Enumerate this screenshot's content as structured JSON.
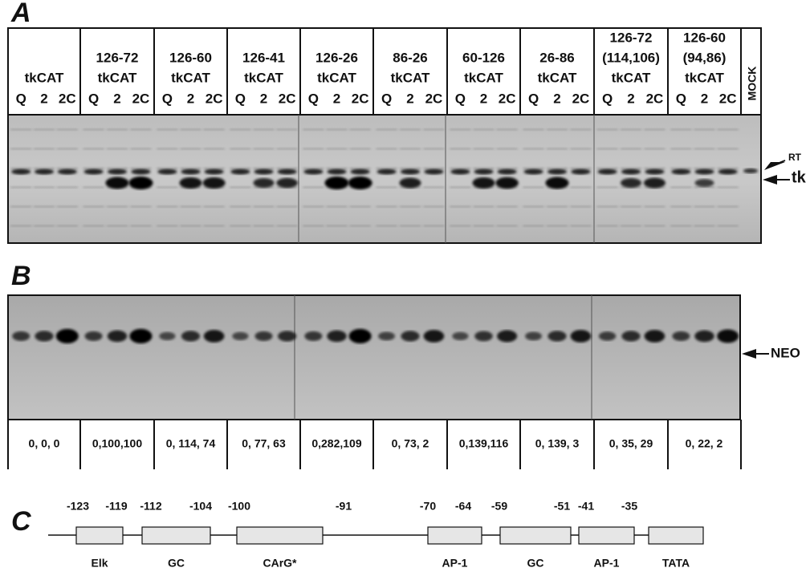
{
  "panels": {
    "a": "A",
    "b": "B",
    "c": "C"
  },
  "groups": [
    {
      "lines": [
        "tkCAT"
      ],
      "lanes": [
        "Q",
        "2",
        "2C"
      ]
    },
    {
      "lines": [
        "126-72",
        "tkCAT"
      ],
      "lanes": [
        "Q",
        "2",
        "2C"
      ]
    },
    {
      "lines": [
        "126-60",
        "tkCAT"
      ],
      "lanes": [
        "Q",
        "2",
        "2C"
      ]
    },
    {
      "lines": [
        "126-41",
        "tkCAT"
      ],
      "lanes": [
        "Q",
        "2",
        "2C"
      ]
    },
    {
      "lines": [
        "126-26",
        "tkCAT"
      ],
      "lanes": [
        "Q",
        "2",
        "2C"
      ]
    },
    {
      "lines": [
        "86-26",
        "tkCAT"
      ],
      "lanes": [
        "Q",
        "2",
        "2C"
      ]
    },
    {
      "lines": [
        "60-126",
        "tkCAT"
      ],
      "lanes": [
        "Q",
        "2",
        "2C"
      ]
    },
    {
      "lines": [
        "26-86",
        "tkCAT"
      ],
      "lanes": [
        "Q",
        "2",
        "2C"
      ]
    },
    {
      "lines": [
        "126-72",
        "(114,106)",
        "tkCAT"
      ],
      "lanes": [
        "Q",
        "2",
        "2C"
      ]
    },
    {
      "lines": [
        "126-60",
        "(94,86)",
        "tkCAT"
      ],
      "lanes": [
        "Q",
        "2",
        "2C"
      ]
    }
  ],
  "mock": "MOCK",
  "markers": {
    "rt": "RT",
    "tk": "tk",
    "neo": "NEO"
  },
  "quantities": [
    "0, 0, 0",
    "0,100,100",
    "0, 114, 74",
    "0, 77, 63",
    "0,282,109",
    "0, 73, 2",
    "0,139,116",
    "0, 139, 3",
    "0, 35, 29",
    "0, 22, 2"
  ],
  "map": {
    "positions": [
      "-123",
      "-119",
      "-112",
      "-104",
      "-100",
      "-91",
      "-70",
      "-64",
      "-59",
      "-51",
      "-41",
      "-35"
    ],
    "elements": [
      "Elk",
      "GC",
      "CArG*",
      "AP-1",
      "GC",
      "AP-1",
      "TATA"
    ]
  }
}
